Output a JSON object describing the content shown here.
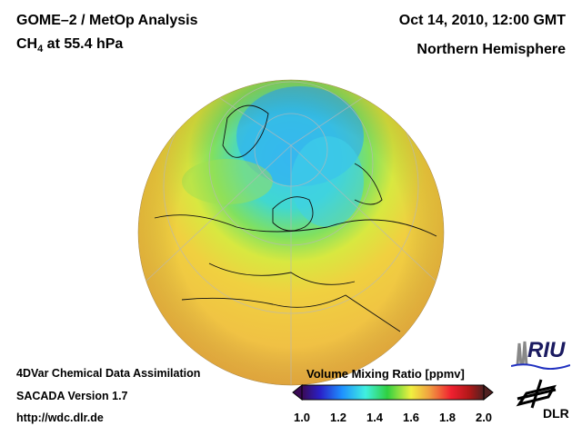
{
  "header": {
    "title_line1": "GOME–2 / MetOp Analysis",
    "title_line2_prefix": "CH",
    "title_line2_sub": "4",
    "title_line2_suffix": " at 55.4 hPa",
    "datetime": "Oct 14, 2010, 12:00 GMT",
    "region": "Northern Hemisphere"
  },
  "footer": {
    "line1": "4DVar Chemical Data Assimilation",
    "line2": "SACADA Version 1.7",
    "line3": "http://wdc.dlr.de"
  },
  "colorbar": {
    "title": "Volume Mixing Ratio [ppmv]",
    "ticks": [
      "1.0",
      "1.2",
      "1.4",
      "1.6",
      "1.8",
      "2.0"
    ],
    "range": [
      1.0,
      2.0
    ],
    "colors": [
      "#3a0a55",
      "#2a20c8",
      "#1e90ff",
      "#40f0e0",
      "#30d040",
      "#f0f040",
      "#f0a040",
      "#f02030",
      "#b01818",
      "#502020"
    ]
  },
  "logos": {
    "riu": "RIU",
    "dlr": "DLR"
  }
}
